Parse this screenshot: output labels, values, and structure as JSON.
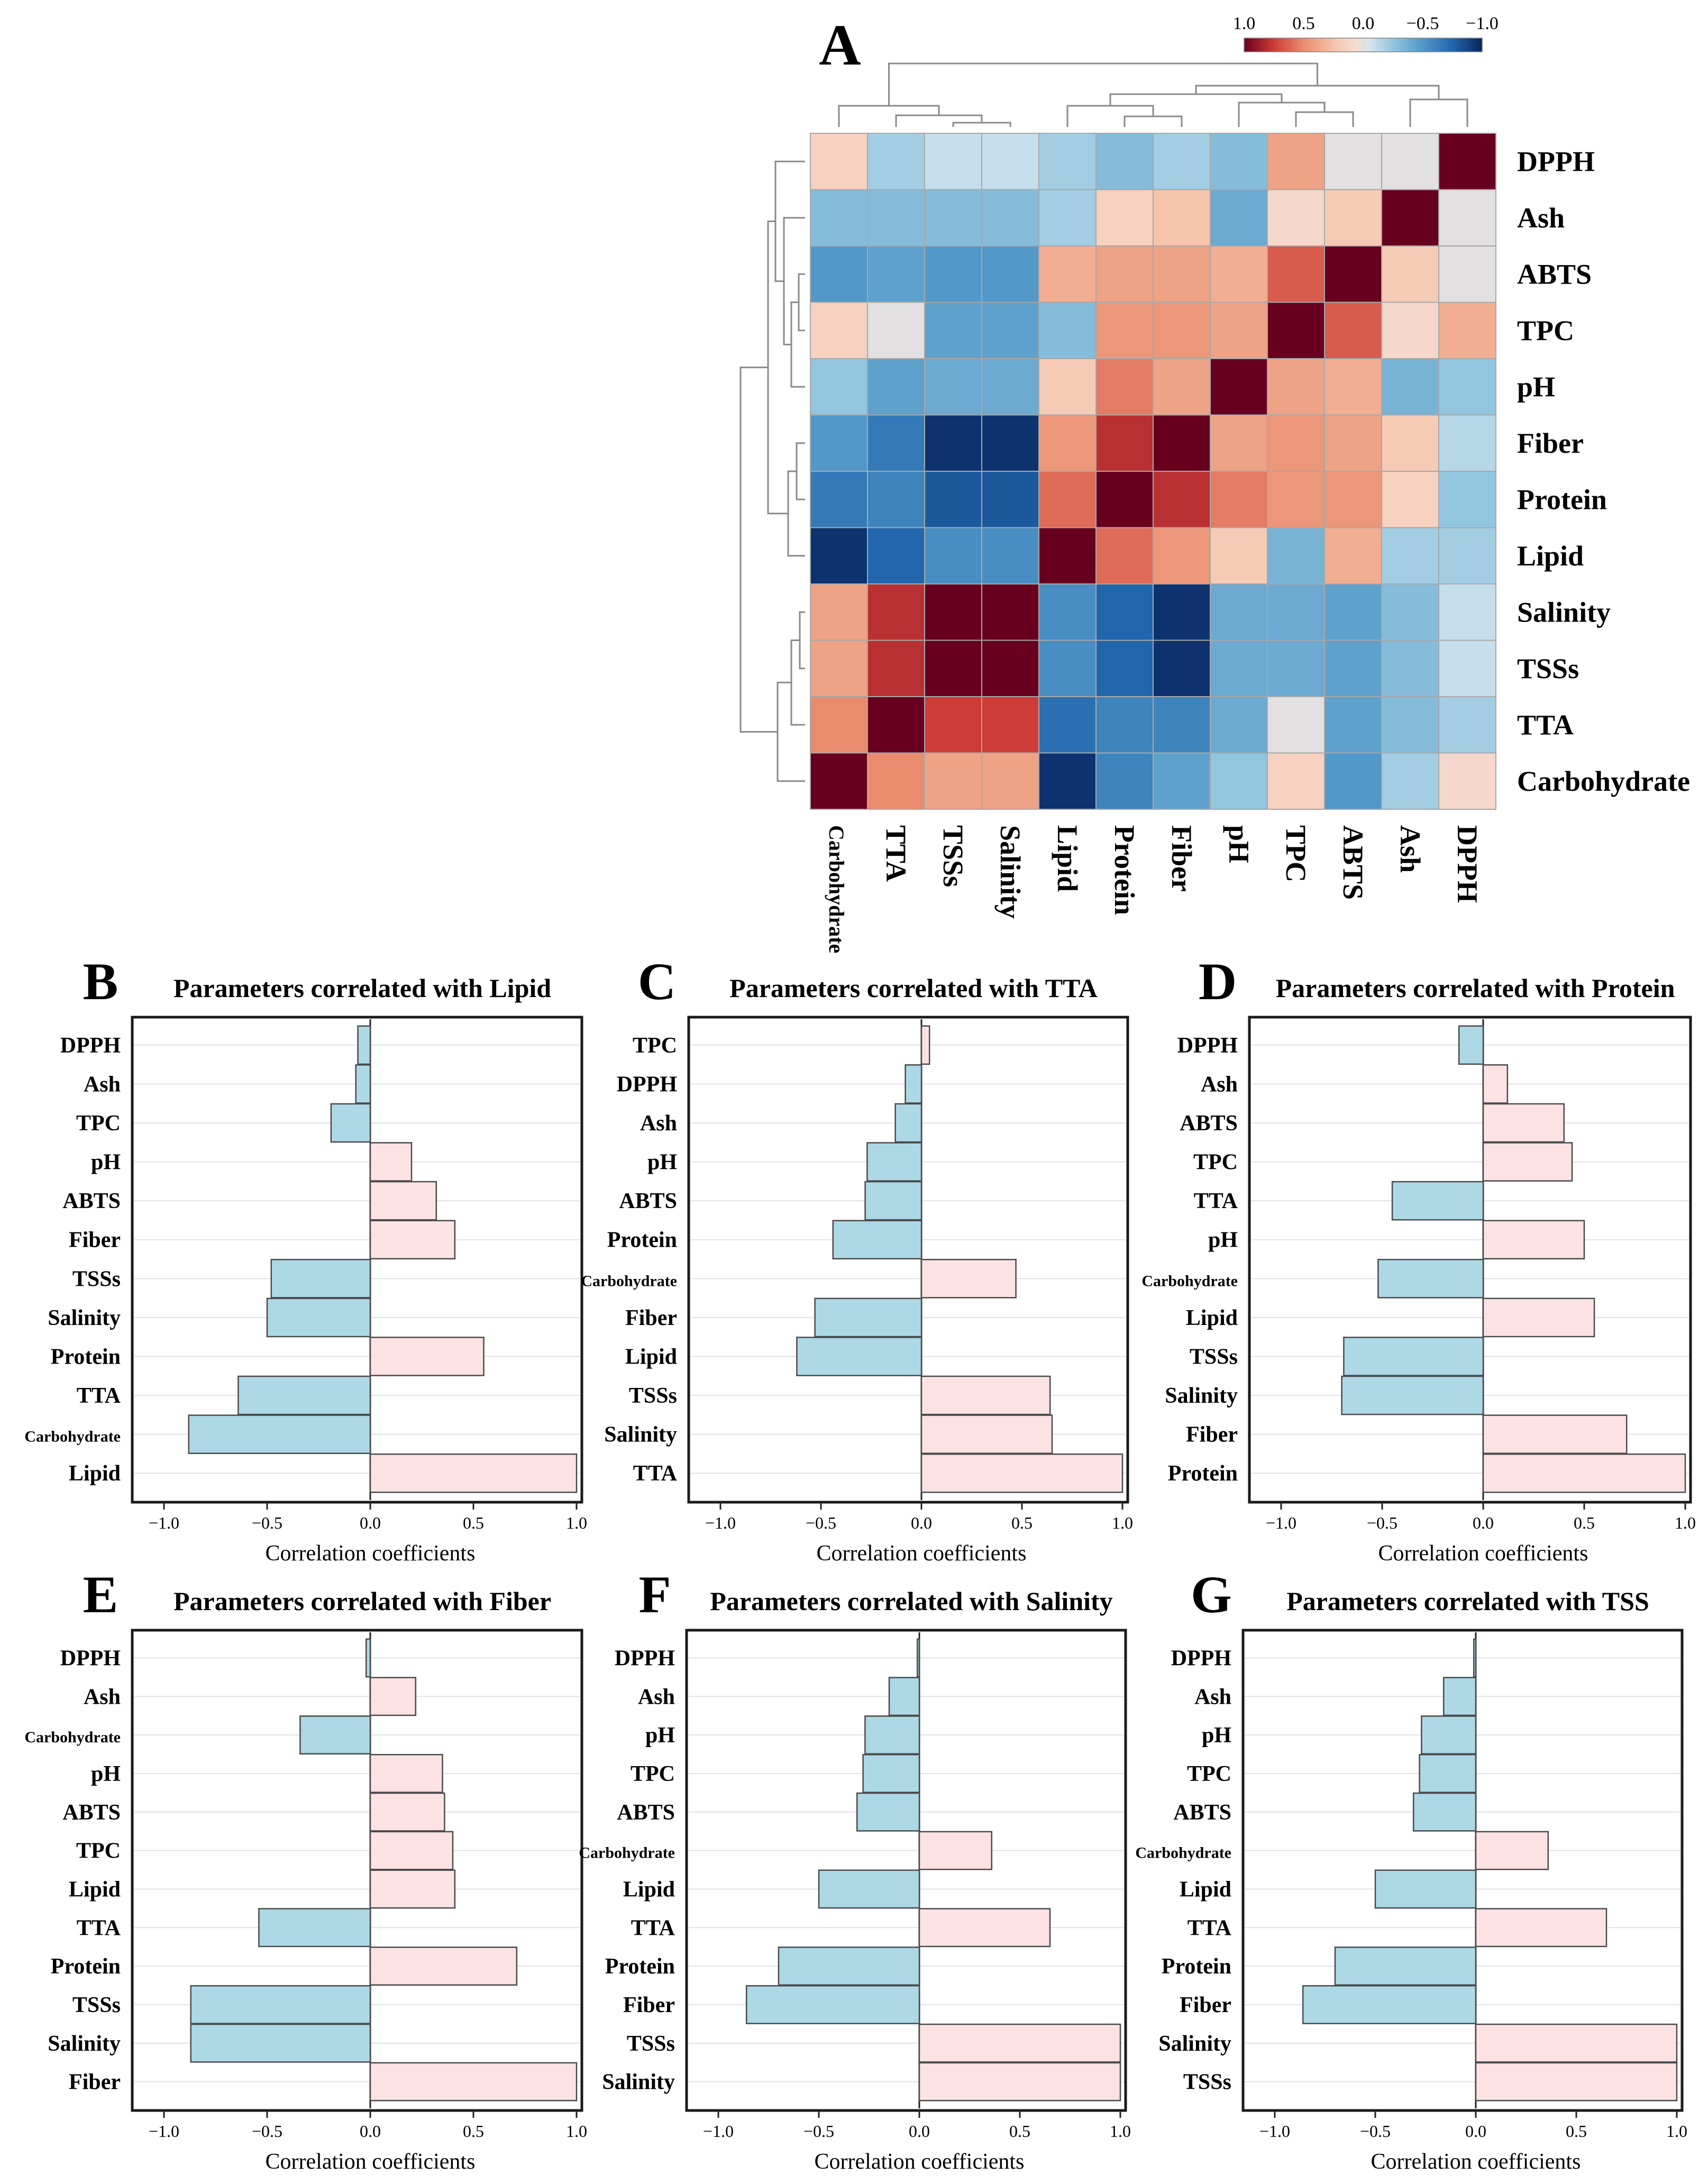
{
  "heatmap": {
    "panel_label": "A",
    "row_labels": [
      "DPPH",
      "Ash",
      "ABTS",
      "TPC",
      "pH",
      "Fiber",
      "Protein",
      "Lipid",
      "Salinity",
      "TSSs",
      "TTA",
      "Carbohydrate"
    ],
    "col_labels": [
      "Carbohydrate",
      "TTA",
      "TSSs",
      "Salinity",
      "Lipid",
      "Protein",
      "Fiber",
      "pH",
      "TPC",
      "ABTS",
      "Ash",
      "DPPH"
    ],
    "values": [
      [
        0.15,
        -0.2,
        -0.1,
        -0.1,
        -0.2,
        -0.3,
        -0.2,
        -0.3,
        0.4,
        0.0,
        0.0,
        1.0
      ],
      [
        -0.3,
        -0.3,
        -0.3,
        -0.3,
        -0.2,
        0.15,
        0.25,
        -0.4,
        0.1,
        0.2,
        1.0,
        0.0
      ],
      [
        -0.5,
        -0.45,
        -0.5,
        -0.5,
        0.35,
        0.4,
        0.4,
        0.35,
        0.65,
        1.0,
        0.2,
        0.0
      ],
      [
        0.15,
        0.0,
        -0.45,
        -0.45,
        -0.3,
        0.45,
        0.45,
        0.4,
        1.0,
        0.65,
        0.1,
        0.35
      ],
      [
        -0.25,
        -0.45,
        -0.4,
        -0.4,
        0.2,
        0.55,
        0.4,
        1.0,
        0.4,
        0.35,
        -0.35,
        -0.25
      ],
      [
        -0.5,
        -0.65,
        -0.95,
        -0.95,
        0.45,
        0.8,
        1.0,
        0.4,
        0.45,
        0.4,
        0.2,
        -0.15
      ],
      [
        -0.65,
        -0.6,
        -0.8,
        -0.8,
        0.6,
        1.0,
        0.8,
        0.55,
        0.45,
        0.45,
        0.15,
        -0.25
      ],
      [
        -0.95,
        -0.75,
        -0.55,
        -0.55,
        1.0,
        0.6,
        0.45,
        0.2,
        -0.35,
        0.35,
        -0.2,
        -0.2
      ],
      [
        0.4,
        0.8,
        1.0,
        1.0,
        -0.55,
        -0.75,
        -0.95,
        -0.4,
        -0.4,
        -0.45,
        -0.3,
        -0.1
      ],
      [
        0.4,
        0.8,
        1.0,
        1.0,
        -0.55,
        -0.75,
        -0.95,
        -0.4,
        -0.4,
        -0.45,
        -0.3,
        -0.1
      ],
      [
        0.5,
        1.0,
        0.75,
        0.75,
        -0.7,
        -0.6,
        -0.6,
        -0.4,
        0.0,
        -0.45,
        -0.3,
        -0.2
      ],
      [
        1.0,
        0.5,
        0.4,
        0.4,
        -0.95,
        -0.6,
        -0.45,
        -0.25,
        0.15,
        -0.5,
        -0.2,
        0.1
      ]
    ],
    "colorbar_ticks": [
      "1.0",
      "0.5",
      "0.0",
      "−0.5",
      "−1.0"
    ]
  },
  "panels": {
    "b": {
      "label": "B",
      "title": "Parameters correlated with Lipid"
    },
    "c": {
      "label": "C",
      "title": "Parameters correlated with TTA"
    },
    "d": {
      "label": "D",
      "title": "Parameters correlated with Protein"
    },
    "e": {
      "label": "E",
      "title": "Parameters correlated with Fiber"
    },
    "f": {
      "label": "F",
      "title": "Parameters correlated with Salinity"
    },
    "g": {
      "label": "G",
      "title": "Parameters correlated with TSS"
    }
  },
  "chart_data": [
    {
      "type": "heatmap",
      "rows": [
        "DPPH",
        "Ash",
        "ABTS",
        "TPC",
        "pH",
        "Fiber",
        "Protein",
        "Lipid",
        "Salinity",
        "TSSs",
        "TTA",
        "Carbohydrate"
      ],
      "columns": [
        "Carbohydrate",
        "TTA",
        "TSSs",
        "Salinity",
        "Lipid",
        "Protein",
        "Fiber",
        "pH",
        "TPC",
        "ABTS",
        "Ash",
        "DPPH"
      ],
      "color_range": [
        -1.0,
        1.0
      ],
      "colorbar_ticks": [
        1.0,
        0.5,
        0.0,
        -0.5,
        -1.0
      ]
    },
    {
      "type": "bar",
      "orientation": "horizontal",
      "categories": [
        "DPPH",
        "Ash",
        "TPC",
        "pH",
        "ABTS",
        "Fiber",
        "TSSs",
        "Salinity",
        "Protein",
        "TTA",
        "Carbohydrate",
        "Lipid"
      ],
      "values": [
        -0.06,
        -0.07,
        -0.19,
        0.2,
        0.32,
        0.41,
        -0.48,
        -0.5,
        0.55,
        -0.64,
        -0.88,
        1.0
      ],
      "xlabel": "Correlation coefficients",
      "xlim": [
        -1.0,
        1.0
      ],
      "xticks": [
        -1.0,
        -0.5,
        0.0,
        0.5,
        1.0
      ]
    },
    {
      "type": "bar",
      "orientation": "horizontal",
      "categories": [
        "TPC",
        "DPPH",
        "Ash",
        "pH",
        "ABTS",
        "Protein",
        "Carbohydrate",
        "Fiber",
        "Lipid",
        "TSSs",
        "Salinity",
        "TTA"
      ],
      "values": [
        0.04,
        -0.08,
        -0.13,
        -0.27,
        -0.28,
        -0.44,
        0.47,
        -0.53,
        -0.62,
        0.64,
        0.65,
        1.0
      ],
      "xlabel": "Correlation coefficients",
      "xlim": [
        -1.0,
        1.0
      ],
      "xticks": [
        -1.0,
        -0.5,
        0.0,
        0.5,
        1.0
      ]
    },
    {
      "type": "bar",
      "orientation": "horizontal",
      "categories": [
        "DPPH",
        "Ash",
        "ABTS",
        "TPC",
        "TTA",
        "pH",
        "Carbohydrate",
        "Lipid",
        "TSSs",
        "Salinity",
        "Fiber",
        "Protein"
      ],
      "values": [
        -0.12,
        0.12,
        0.4,
        0.44,
        -0.45,
        0.5,
        -0.52,
        0.55,
        -0.69,
        -0.7,
        0.71,
        1.0
      ],
      "xlabel": "Correlation coefficients",
      "xlim": [
        -1.0,
        1.0
      ],
      "xticks": [
        -1.0,
        -0.5,
        0.0,
        0.5,
        1.0
      ]
    },
    {
      "type": "bar",
      "orientation": "horizontal",
      "categories": [
        "DPPH",
        "Ash",
        "Carbohydrate",
        "pH",
        "ABTS",
        "TPC",
        "Lipid",
        "TTA",
        "Protein",
        "TSSs",
        "Salinity",
        "Fiber"
      ],
      "values": [
        -0.02,
        0.22,
        -0.34,
        0.35,
        0.36,
        0.4,
        0.41,
        -0.54,
        0.71,
        -0.87,
        -0.87,
        1.0
      ],
      "xlabel": "Correlation coefficients",
      "xlim": [
        -1.0,
        1.0
      ],
      "xticks": [
        -1.0,
        -0.5,
        0.0,
        0.5,
        1.0
      ]
    },
    {
      "type": "bar",
      "orientation": "horizontal",
      "categories": [
        "DPPH",
        "Ash",
        "pH",
        "TPC",
        "ABTS",
        "Carbohydrate",
        "Lipid",
        "TTA",
        "Protein",
        "Fiber",
        "TSSs",
        "Salinity"
      ],
      "values": [
        -0.01,
        -0.15,
        -0.27,
        -0.28,
        -0.31,
        0.36,
        -0.5,
        0.65,
        -0.7,
        -0.86,
        1.0,
        1.0
      ],
      "xlabel": "Correlation coefficients",
      "xlim": [
        -1.0,
        1.0
      ],
      "xticks": [
        -1.0,
        -0.5,
        0.0,
        0.5,
        1.0
      ]
    },
    {
      "type": "bar",
      "orientation": "horizontal",
      "categories": [
        "DPPH",
        "Ash",
        "pH",
        "TPC",
        "ABTS",
        "Carbohydrate",
        "Lipid",
        "TTA",
        "Protein",
        "Fiber",
        "Salinity",
        "TSSs"
      ],
      "values": [
        -0.01,
        -0.16,
        -0.27,
        -0.28,
        -0.31,
        0.36,
        -0.5,
        0.65,
        -0.7,
        -0.86,
        1.0,
        1.0
      ],
      "xlabel": "Correlation coefficients",
      "xlim": [
        -1.0,
        1.0
      ],
      "xticks": [
        -1.0,
        -0.5,
        0.0,
        0.5,
        1.0
      ]
    }
  ]
}
